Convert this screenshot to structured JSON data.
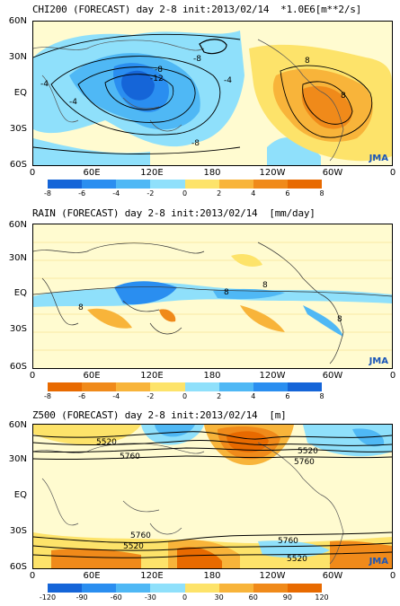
{
  "panels": [
    {
      "title": "CHI200 (FORECAST) day 2-8 init:2013/02/14  *1.0E6[m**2/s]",
      "lat_labels": [
        "60N",
        "30N",
        "EQ",
        "30S",
        "60S"
      ],
      "lon_labels": [
        "0",
        "60E",
        "120E",
        "180",
        "120W",
        "60W",
        "0"
      ],
      "colorbar_ticks": [
        "-8",
        "-6",
        "-4",
        "-2",
        "0",
        "2",
        "4",
        "6",
        "8"
      ],
      "colorbar_colors": [
        "#1565d8",
        "#2a8ef0",
        "#4fb8f5",
        "#8fe0fb",
        "#ffffcc",
        "#fde36a",
        "#f8b43a",
        "#f08a1a",
        "#e86a00"
      ],
      "contour_labels": [
        "-8",
        "-4",
        "-8",
        "-12",
        "-4",
        "-4",
        "-8",
        "8",
        "8"
      ],
      "logo": "JMA"
    },
    {
      "title": "RAIN (FORECAST) day 2-8 init:2013/02/14  [mm/day]",
      "lat_labels": [
        "60N",
        "30N",
        "EQ",
        "30S",
        "60S"
      ],
      "lon_labels": [
        "0",
        "60E",
        "120E",
        "180",
        "120W",
        "60W",
        "0"
      ],
      "colorbar_ticks": [
        "-8",
        "-6",
        "-4",
        "-2",
        "0",
        "2",
        "4",
        "6",
        "8"
      ],
      "colorbar_colors": [
        "#e86a00",
        "#f08a1a",
        "#f8b43a",
        "#fde36a",
        "#ffffcc",
        "#8fe0fb",
        "#4fb8f5",
        "#2a8ef0",
        "#1565d8"
      ],
      "contour_labels": [
        "8",
        "8",
        "8",
        "8"
      ],
      "logo": "JMA"
    },
    {
      "title": "Z500 (FORECAST) day 2-8 init:2013/02/14  [m]",
      "lat_labels": [
        "60N",
        "30N",
        "EQ",
        "30S",
        "60S"
      ],
      "lon_labels": [
        "0",
        "60E",
        "120E",
        "180",
        "120W",
        "60W",
        "0"
      ],
      "colorbar_ticks": [
        "-120",
        "-90",
        "-60",
        "-30",
        "0",
        "30",
        "60",
        "90",
        "120"
      ],
      "colorbar_colors": [
        "#1565d8",
        "#2a8ef0",
        "#4fb8f5",
        "#8fe0fb",
        "#ffffcc",
        "#fde36a",
        "#f8b43a",
        "#f08a1a",
        "#e86a00"
      ],
      "contour_labels": [
        "5520",
        "5760",
        "5520",
        "5760",
        "5760",
        "5520",
        "5760",
        "5520"
      ],
      "logo": "JMA"
    }
  ]
}
